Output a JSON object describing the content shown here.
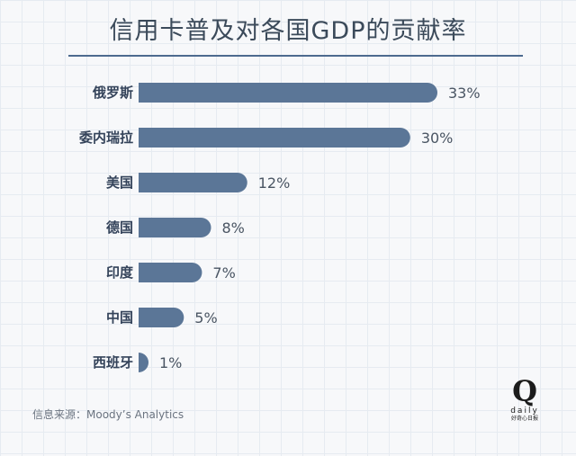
{
  "title": "信用卡普及对各国GDP的贡献率",
  "source": "信息来源：Moody’s Analytics",
  "logo": {
    "mark": "Q",
    "word": "daily",
    "tagline": "好奇心日报"
  },
  "colors": {
    "bar": "#5b7697",
    "rule": "#4d6a8f"
  },
  "chart_data": {
    "type": "bar",
    "orientation": "horizontal",
    "title": "信用卡普及对各国GDP的贡献率",
    "categories": [
      "俄罗斯",
      "委内瑞拉",
      "美国",
      "德国",
      "印度",
      "中国",
      "西班牙"
    ],
    "values": [
      33,
      30,
      12,
      8,
      7,
      5,
      1
    ],
    "value_labels": [
      "33%",
      "30%",
      "12%",
      "8%",
      "7%",
      "5%",
      "1%"
    ],
    "unit": "%",
    "xlim": [
      0,
      33
    ],
    "grid": false,
    "legend": "none"
  }
}
